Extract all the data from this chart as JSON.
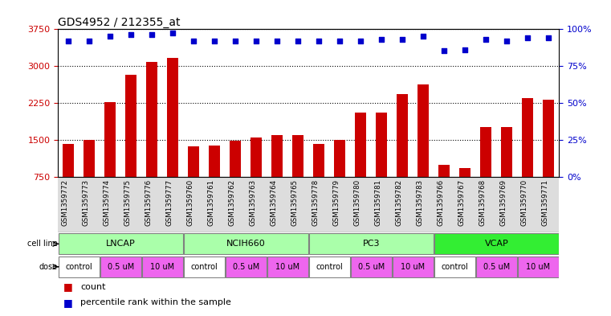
{
  "title": "GDS4952 / 212355_at",
  "samples": [
    "GSM1359772",
    "GSM1359773",
    "GSM1359774",
    "GSM1359775",
    "GSM1359776",
    "GSM1359777",
    "GSM1359760",
    "GSM1359761",
    "GSM1359762",
    "GSM1359763",
    "GSM1359764",
    "GSM1359765",
    "GSM1359778",
    "GSM1359779",
    "GSM1359780",
    "GSM1359781",
    "GSM1359782",
    "GSM1359783",
    "GSM1359766",
    "GSM1359767",
    "GSM1359768",
    "GSM1359769",
    "GSM1359770",
    "GSM1359771"
  ],
  "counts": [
    1430,
    1500,
    2270,
    2820,
    3080,
    3160,
    1380,
    1390,
    1490,
    1550,
    1600,
    1600,
    1430,
    1500,
    2060,
    2050,
    2430,
    2620,
    1000,
    940,
    1770,
    1770,
    2350,
    2310
  ],
  "percentile_ranks": [
    92,
    92,
    95,
    96,
    96,
    97,
    92,
    92,
    92,
    92,
    92,
    92,
    92,
    92,
    92,
    93,
    93,
    95,
    85,
    86,
    93,
    92,
    94,
    94
  ],
  "cell_lines": [
    {
      "name": "LNCAP",
      "start": 0,
      "end": 6,
      "color": "#AAFFAA"
    },
    {
      "name": "NCIH660",
      "start": 6,
      "end": 12,
      "color": "#AAFFAA"
    },
    {
      "name": "PC3",
      "start": 12,
      "end": 18,
      "color": "#AAFFAA"
    },
    {
      "name": "VCAP",
      "start": 18,
      "end": 24,
      "color": "#33EE33"
    }
  ],
  "dose_groups": [
    {
      "label": "control",
      "start": 0,
      "end": 2,
      "color": "#FFFFFF"
    },
    {
      "label": "0.5 uM",
      "start": 2,
      "end": 4,
      "color": "#EE66EE"
    },
    {
      "label": "10 uM",
      "start": 4,
      "end": 6,
      "color": "#EE66EE"
    },
    {
      "label": "control",
      "start": 6,
      "end": 8,
      "color": "#FFFFFF"
    },
    {
      "label": "0.5 uM",
      "start": 8,
      "end": 10,
      "color": "#EE66EE"
    },
    {
      "label": "10 uM",
      "start": 10,
      "end": 12,
      "color": "#EE66EE"
    },
    {
      "label": "control",
      "start": 12,
      "end": 14,
      "color": "#FFFFFF"
    },
    {
      "label": "0.5 uM",
      "start": 14,
      "end": 16,
      "color": "#EE66EE"
    },
    {
      "label": "10 uM",
      "start": 16,
      "end": 18,
      "color": "#EE66EE"
    },
    {
      "label": "control",
      "start": 18,
      "end": 20,
      "color": "#FFFFFF"
    },
    {
      "label": "0.5 uM",
      "start": 20,
      "end": 22,
      "color": "#EE66EE"
    },
    {
      "label": "10 uM",
      "start": 22,
      "end": 24,
      "color": "#EE66EE"
    }
  ],
  "ylim_left": [
    750,
    3750
  ],
  "ylim_right": [
    0,
    100
  ],
  "yticks_left": [
    750,
    1500,
    2250,
    3000,
    3750
  ],
  "yticks_right": [
    0,
    25,
    50,
    75,
    100
  ],
  "bar_color": "#CC0000",
  "dot_color": "#0000CC",
  "bar_bottom": 750
}
